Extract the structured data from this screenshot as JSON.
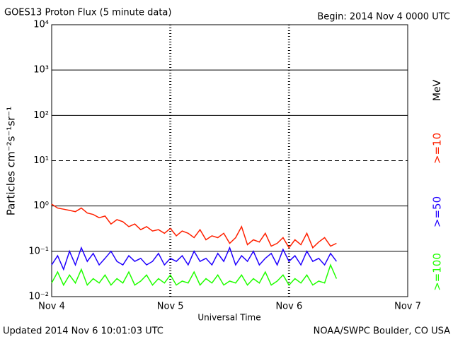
{
  "chart_data": {
    "type": "line",
    "title": "GOES13 Proton Flux (5 minute data)",
    "subtitle": "Begin: 2014 Nov 4 0000 UTC",
    "xlabel": "Universal Time",
    "ylabel": "Particles cm⁻²s⁻¹sr⁻¹",
    "unit_label": "MeV",
    "footer_left": "Updated 2014 Nov  6 10:01:03 UTC",
    "footer_right": "NOAA/SWPC Boulder, CO USA",
    "log_y": true,
    "xlim": [
      0,
      3
    ],
    "xticks": [
      {
        "value": 0,
        "label": "Nov 4"
      },
      {
        "value": 1,
        "label": "Nov 5"
      },
      {
        "value": 2,
        "label": "Nov 6"
      },
      {
        "value": 3,
        "label": "Nov 7"
      }
    ],
    "ylim": [
      0.01,
      10000
    ],
    "yticks": [
      {
        "value": 0.01,
        "label": "10⁻²"
      },
      {
        "value": 0.1,
        "label": "10⁻¹"
      },
      {
        "value": 1,
        "label": "10⁰"
      },
      {
        "value": 10,
        "label": "10¹"
      },
      {
        "value": 100,
        "label": "10²"
      },
      {
        "value": 1000,
        "label": "10³"
      },
      {
        "value": 10000,
        "label": "10⁴"
      }
    ],
    "grid": true,
    "dashed_gridline": 10,
    "x": [
      0,
      0.05,
      0.1,
      0.15,
      0.2,
      0.25,
      0.3,
      0.35,
      0.4,
      0.45,
      0.5,
      0.55,
      0.6,
      0.65,
      0.7,
      0.75,
      0.8,
      0.85,
      0.9,
      0.95,
      1,
      1.05,
      1.1,
      1.15,
      1.2,
      1.25,
      1.3,
      1.35,
      1.4,
      1.45,
      1.5,
      1.55,
      1.6,
      1.65,
      1.7,
      1.75,
      1.8,
      1.85,
      1.9,
      1.95,
      2,
      2.05,
      2.1,
      2.15,
      2.2,
      2.25,
      2.3,
      2.35,
      2.4
    ],
    "series": [
      {
        "name": ">=10",
        "color": "#ff2000",
        "values": [
          1.1,
          0.9,
          0.85,
          0.8,
          0.75,
          0.9,
          0.7,
          0.65,
          0.55,
          0.6,
          0.4,
          0.5,
          0.45,
          0.35,
          0.4,
          0.3,
          0.35,
          0.28,
          0.3,
          0.25,
          0.32,
          0.22,
          0.28,
          0.25,
          0.2,
          0.3,
          0.18,
          0.22,
          0.2,
          0.25,
          0.15,
          0.2,
          0.35,
          0.14,
          0.18,
          0.16,
          0.25,
          0.13,
          0.15,
          0.2,
          0.12,
          0.18,
          0.14,
          0.25,
          0.12,
          0.16,
          0.2,
          0.13,
          0.15
        ]
      },
      {
        "name": ">=50",
        "color": "#2000ff",
        "values": [
          0.05,
          0.08,
          0.04,
          0.1,
          0.05,
          0.12,
          0.06,
          0.09,
          0.05,
          0.07,
          0.1,
          0.06,
          0.05,
          0.08,
          0.06,
          0.07,
          0.05,
          0.06,
          0.09,
          0.05,
          0.07,
          0.06,
          0.08,
          0.05,
          0.1,
          0.06,
          0.07,
          0.05,
          0.09,
          0.06,
          0.12,
          0.05,
          0.08,
          0.06,
          0.1,
          0.05,
          0.07,
          0.09,
          0.05,
          0.11,
          0.06,
          0.08,
          0.05,
          0.1,
          0.06,
          0.07,
          0.05,
          0.09,
          0.06
        ]
      },
      {
        "name": ">=100",
        "color": "#20ff00",
        "values": [
          0.02,
          0.035,
          0.018,
          0.03,
          0.02,
          0.04,
          0.018,
          0.025,
          0.02,
          0.03,
          0.018,
          0.025,
          0.02,
          0.035,
          0.018,
          0.022,
          0.03,
          0.018,
          0.025,
          0.02,
          0.03,
          0.018,
          0.022,
          0.02,
          0.035,
          0.018,
          0.025,
          0.02,
          0.03,
          0.018,
          0.022,
          0.02,
          0.03,
          0.018,
          0.025,
          0.02,
          0.035,
          0.018,
          0.022,
          0.03,
          0.018,
          0.025,
          0.02,
          0.03,
          0.018,
          0.022,
          0.02,
          0.05,
          0.025
        ]
      }
    ]
  }
}
